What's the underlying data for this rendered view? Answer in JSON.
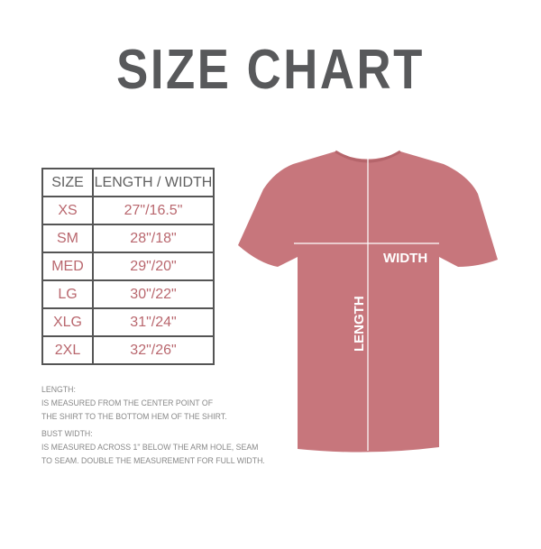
{
  "title": "SIZE CHART",
  "table": {
    "headers": [
      "SIZE",
      "LENGTH / WIDTH"
    ],
    "rows": [
      {
        "size": "XS",
        "measure": "27\"/16.5\""
      },
      {
        "size": "SM",
        "measure": "28\"/18\""
      },
      {
        "size": "MED",
        "measure": "29\"/20\""
      },
      {
        "size": "LG",
        "measure": "30\"/22\""
      },
      {
        "size": "XLG",
        "measure": "31\"/24\""
      },
      {
        "size": "2XL",
        "measure": "32\"/26\""
      }
    ]
  },
  "notes": {
    "length_label": "LENGTH:",
    "length_line1": "IS MEASURED FROM THE CENTER POINT OF",
    "length_line2": "THE SHIRT TO THE BOTTOM HEM OF THE SHIRT.",
    "width_label": "BUST WIDTH:",
    "width_line1": "IS MEASURED ACROSS  1\" BELOW THE ARM HOLE, SEAM",
    "width_line2": "TO SEAM. DOUBLE THE MEASUREMENT FOR FULL WIDTH."
  },
  "shirt": {
    "width_label": "WIDTH",
    "length_label": "LENGTH",
    "color": "#c7767c"
  },
  "colors": {
    "title": "#58595b",
    "size_text": "#b9676e"
  }
}
